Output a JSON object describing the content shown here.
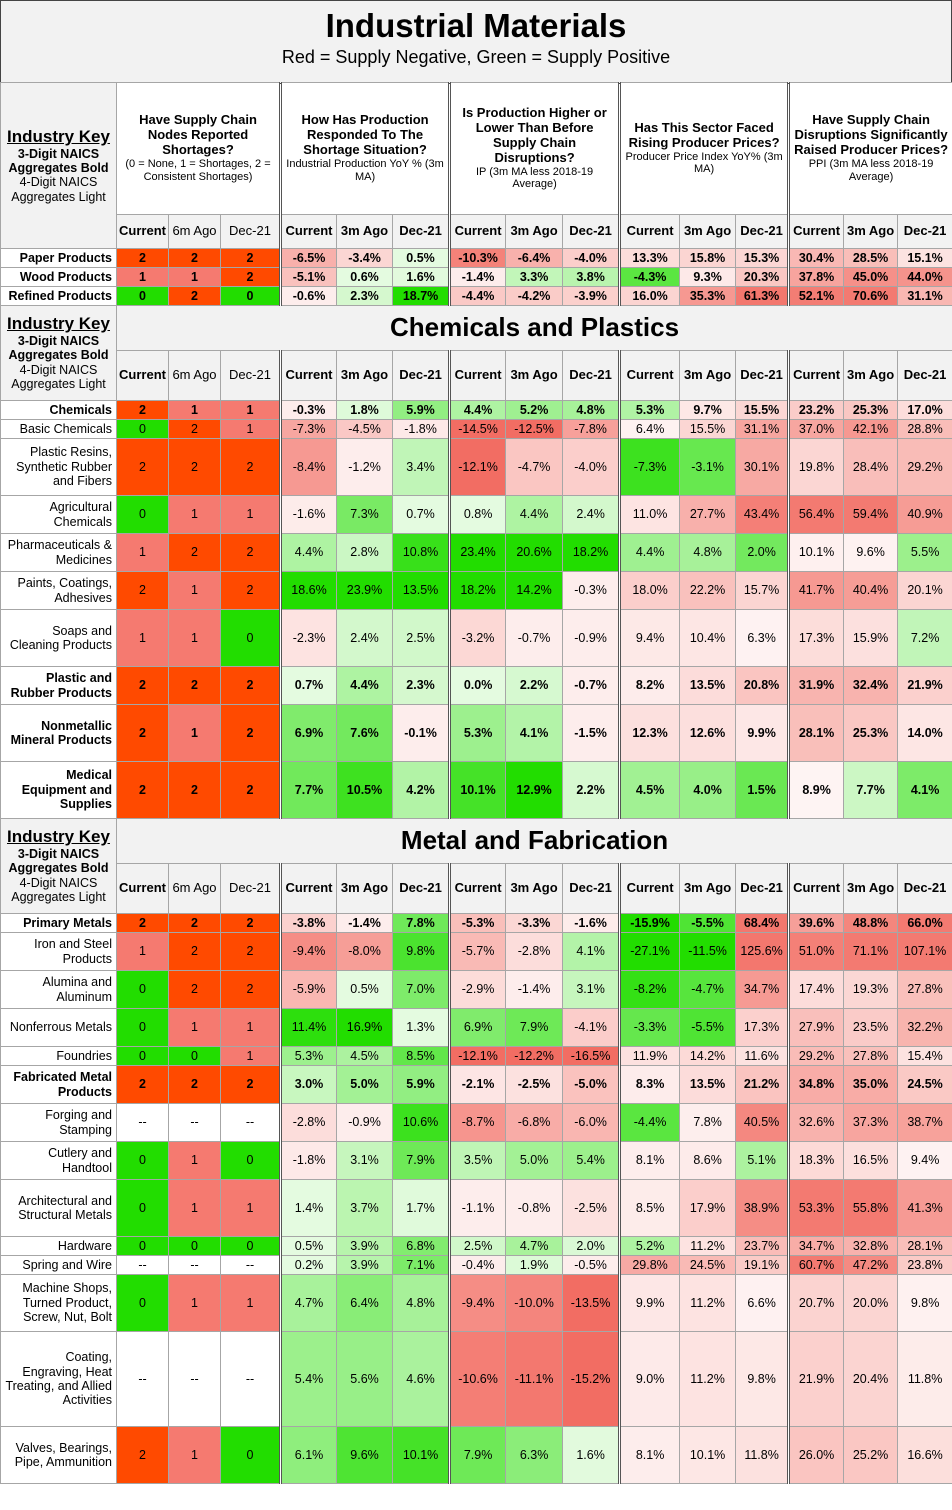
{
  "title": "Industrial Materials",
  "subtitle": "Red = Supply Negative, Green = Supply Positive",
  "key": {
    "line1": "Industry Key",
    "line2": "3-Digit NAICS",
    "line3": "Aggregates Bold",
    "line4": "4-Digit NAICS",
    "line5": "Aggregates Light"
  },
  "questions": [
    {
      "q": "Have Supply Chain Nodes Reported Shortages?",
      "sub": "(0 = None, 1 = Shortages, 2 = Consistent Shortages)"
    },
    {
      "q": "How Has Production Responded To The Shortage Situation?",
      "sub": "Industrial Production YoY % (3m MA)"
    },
    {
      "q": "Is Production Higher or Lower Than Before Supply Chain Disruptions?",
      "sub": "IP (3m MA less 2018-19 Average)"
    },
    {
      "q": "Has This Sector Faced Rising Producer Prices?",
      "sub": "Producer Price Index YoY% (3m MA)"
    },
    {
      "q": "Have Supply Chain Disruptions Significantly Raised Producer Prices?",
      "sub": "PPI (3m MA less 2018-19 Average)"
    }
  ],
  "col_labels_first": [
    "Current",
    "6m Ago",
    "Dec-21"
  ],
  "col_labels_other": [
    "Current",
    "3m Ago",
    "Dec-21"
  ],
  "colors": {
    "red_strong": "#ff4a00",
    "red_med": "#f57a70",
    "green_strong": "#22dd00"
  },
  "sections": [
    {
      "title": "",
      "rows": [
        {
          "name": "Paper Products",
          "bold": true,
          "h": 19,
          "vals": [
            "2",
            "2",
            "2",
            "-6.5%",
            "-3.4%",
            "0.5%",
            "-10.3%",
            "-6.4%",
            "-4.0%",
            "13.3%",
            "15.8%",
            "15.3%",
            "30.4%",
            "28.5%",
            "15.1%"
          ]
        },
        {
          "name": "Wood Products",
          "bold": true,
          "h": 19,
          "vals": [
            "1",
            "1",
            "2",
            "-5.1%",
            "0.6%",
            "1.6%",
            "-1.4%",
            "3.3%",
            "3.8%",
            "-4.3%",
            "9.3%",
            "20.3%",
            "37.8%",
            "45.0%",
            "44.0%"
          ]
        },
        {
          "name": "Refined Products",
          "bold": true,
          "h": 19,
          "vals": [
            "0",
            "2",
            "0",
            "-0.6%",
            "2.3%",
            "18.7%",
            "-4.4%",
            "-4.2%",
            "-3.9%",
            "16.0%",
            "35.3%",
            "61.3%",
            "52.1%",
            "70.6%",
            "31.1%"
          ]
        }
      ]
    },
    {
      "title": "Chemicals and Plastics",
      "rows": [
        {
          "name": "Chemicals",
          "bold": true,
          "h": 19,
          "vals": [
            "2",
            "1",
            "1",
            "-0.3%",
            "1.8%",
            "5.9%",
            "4.4%",
            "5.2%",
            "4.8%",
            "5.3%",
            "9.7%",
            "15.5%",
            "23.2%",
            "25.3%",
            "17.0%"
          ]
        },
        {
          "name": "Basic Chemicals",
          "bold": false,
          "h": 19,
          "vals": [
            "0",
            "2",
            "1",
            "-7.3%",
            "-4.5%",
            "-1.8%",
            "-14.5%",
            "-12.5%",
            "-7.8%",
            "6.4%",
            "15.5%",
            "31.1%",
            "37.0%",
            "42.1%",
            "28.8%"
          ]
        },
        {
          "name": "Plastic Resins, Synthetic Rubber and Fibers",
          "bold": false,
          "h": 57,
          "vals": [
            "2",
            "2",
            "2",
            "-8.4%",
            "-1.2%",
            "3.4%",
            "-12.1%",
            "-4.7%",
            "-4.0%",
            "-7.3%",
            "-3.1%",
            "30.1%",
            "19.8%",
            "28.4%",
            "29.2%"
          ]
        },
        {
          "name": "Agricultural Chemicals",
          "bold": false,
          "h": 38,
          "vals": [
            "0",
            "1",
            "1",
            "-1.6%",
            "7.3%",
            "0.7%",
            "0.8%",
            "4.4%",
            "2.4%",
            "11.0%",
            "27.7%",
            "43.4%",
            "56.4%",
            "59.4%",
            "40.9%"
          ]
        },
        {
          "name": "Pharmaceuticals & Medicines",
          "bold": false,
          "h": 38,
          "vals": [
            "1",
            "2",
            "2",
            "4.4%",
            "2.8%",
            "10.8%",
            "23.4%",
            "20.6%",
            "18.2%",
            "4.4%",
            "4.8%",
            "2.0%",
            "10.1%",
            "9.6%",
            "5.5%"
          ]
        },
        {
          "name": "Paints, Coatings, Adhesives",
          "bold": false,
          "h": 38,
          "vals": [
            "2",
            "1",
            "2",
            "18.6%",
            "23.9%",
            "13.5%",
            "18.2%",
            "14.2%",
            "-0.3%",
            "18.0%",
            "22.2%",
            "15.7%",
            "41.7%",
            "40.4%",
            "20.1%"
          ]
        },
        {
          "name": "Soaps and Cleaning Products",
          "bold": false,
          "h": 57,
          "vals": [
            "1",
            "1",
            "0",
            "-2.3%",
            "2.4%",
            "2.5%",
            "-3.2%",
            "-0.7%",
            "-0.9%",
            "9.4%",
            "10.4%",
            "6.3%",
            "17.3%",
            "15.9%",
            "7.2%"
          ]
        },
        {
          "name": "Plastic and Rubber Products",
          "bold": true,
          "h": 38,
          "vals": [
            "2",
            "2",
            "2",
            "0.7%",
            "4.4%",
            "2.3%",
            "0.0%",
            "2.2%",
            "-0.7%",
            "8.2%",
            "13.5%",
            "20.8%",
            "31.9%",
            "32.4%",
            "21.9%"
          ]
        },
        {
          "name": "Nonmetallic Mineral Products",
          "bold": true,
          "h": 57,
          "vals": [
            "2",
            "1",
            "2",
            "6.9%",
            "7.6%",
            "-0.1%",
            "5.3%",
            "4.1%",
            "-1.5%",
            "12.3%",
            "12.6%",
            "9.9%",
            "28.1%",
            "25.3%",
            "14.0%"
          ]
        },
        {
          "name": "Medical Equipment and Supplies",
          "bold": true,
          "h": 57,
          "vals": [
            "2",
            "2",
            "2",
            "7.7%",
            "10.5%",
            "4.2%",
            "10.1%",
            "12.9%",
            "2.2%",
            "4.5%",
            "4.0%",
            "1.5%",
            "8.9%",
            "7.7%",
            "4.1%"
          ]
        }
      ]
    },
    {
      "title": "Metal and Fabrication",
      "rows": [
        {
          "name": "Primary Metals",
          "bold": true,
          "h": 19,
          "vals": [
            "2",
            "2",
            "2",
            "-3.8%",
            "-1.4%",
            "7.8%",
            "-5.3%",
            "-3.3%",
            "-1.6%",
            "-15.9%",
            "-5.5%",
            "68.4%",
            "39.6%",
            "48.8%",
            "66.0%"
          ]
        },
        {
          "name": "Iron and Steel Products",
          "bold": false,
          "h": 38,
          "vals": [
            "1",
            "2",
            "2",
            "-9.4%",
            "-8.0%",
            "9.8%",
            "-5.7%",
            "-2.8%",
            "4.1%",
            "-27.1%",
            "-11.5%",
            "125.6%",
            "51.0%",
            "71.1%",
            "107.1%"
          ]
        },
        {
          "name": "Alumina and Aluminum",
          "bold": false,
          "h": 38,
          "vals": [
            "0",
            "2",
            "2",
            "-5.9%",
            "0.5%",
            "7.0%",
            "-2.9%",
            "-1.4%",
            "3.1%",
            "-8.2%",
            "-4.7%",
            "34.7%",
            "17.4%",
            "19.3%",
            "27.8%"
          ]
        },
        {
          "name": "Nonferrous Metals",
          "bold": false,
          "h": 38,
          "vals": [
            "0",
            "1",
            "1",
            "11.4%",
            "16.9%",
            "1.3%",
            "6.9%",
            "7.9%",
            "-4.1%",
            "-3.3%",
            "-5.5%",
            "17.3%",
            "27.9%",
            "23.5%",
            "32.2%"
          ]
        },
        {
          "name": "Foundries",
          "bold": false,
          "h": 19,
          "vals": [
            "0",
            "0",
            "1",
            "5.3%",
            "4.5%",
            "8.5%",
            "-12.1%",
            "-12.2%",
            "-16.5%",
            "11.9%",
            "14.2%",
            "11.6%",
            "29.2%",
            "27.8%",
            "15.4%"
          ]
        },
        {
          "name": "Fabricated Metal Products",
          "bold": true,
          "h": 38,
          "vals": [
            "2",
            "2",
            "2",
            "3.0%",
            "5.0%",
            "5.9%",
            "-2.1%",
            "-2.5%",
            "-5.0%",
            "8.3%",
            "13.5%",
            "21.2%",
            "34.8%",
            "35.0%",
            "24.5%"
          ]
        },
        {
          "name": "Forging and Stamping",
          "bold": false,
          "h": 38,
          "vals": [
            "--",
            "--",
            "--",
            "-2.8%",
            "-0.9%",
            "10.6%",
            "-8.7%",
            "-6.8%",
            "-6.0%",
            "-4.4%",
            "7.8%",
            "40.5%",
            "32.6%",
            "37.3%",
            "38.7%"
          ]
        },
        {
          "name": "Cutlery and Handtool",
          "bold": false,
          "h": 38,
          "vals": [
            "0",
            "1",
            "0",
            "-1.8%",
            "3.1%",
            "7.9%",
            "3.5%",
            "5.0%",
            "5.4%",
            "8.1%",
            "8.6%",
            "5.1%",
            "18.3%",
            "16.5%",
            "9.4%"
          ]
        },
        {
          "name": "Architectural and Structural Metals",
          "bold": false,
          "h": 57,
          "vals": [
            "0",
            "1",
            "1",
            "1.4%",
            "3.7%",
            "1.7%",
            "-1.1%",
            "-0.8%",
            "-2.5%",
            "8.5%",
            "17.9%",
            "38.9%",
            "53.3%",
            "55.8%",
            "41.3%"
          ]
        },
        {
          "name": "Hardware",
          "bold": false,
          "h": 19,
          "vals": [
            "0",
            "0",
            "0",
            "0.5%",
            "3.9%",
            "6.8%",
            "2.5%",
            "4.7%",
            "2.0%",
            "5.2%",
            "11.2%",
            "23.7%",
            "34.7%",
            "32.8%",
            "28.1%"
          ]
        },
        {
          "name": "Spring and Wire",
          "bold": false,
          "h": 19,
          "vals": [
            "--",
            "--",
            "--",
            "0.2%",
            "3.9%",
            "7.1%",
            "-0.4%",
            "1.9%",
            "-0.5%",
            "29.8%",
            "24.5%",
            "19.1%",
            "60.7%",
            "47.2%",
            "23.8%"
          ]
        },
        {
          "name": "Machine Shops, Turned Product, Screw, Nut, Bolt",
          "bold": false,
          "h": 57,
          "vals": [
            "0",
            "1",
            "1",
            "4.7%",
            "6.4%",
            "4.8%",
            "-9.4%",
            "-10.0%",
            "-13.5%",
            "9.9%",
            "11.2%",
            "6.6%",
            "20.7%",
            "20.0%",
            "9.8%"
          ]
        },
        {
          "name": "Coating, Engraving, Heat Treating, and Allied Activities",
          "bold": false,
          "h": 95,
          "vals": [
            "--",
            "--",
            "--",
            "5.4%",
            "5.6%",
            "4.6%",
            "-10.6%",
            "-11.1%",
            "-15.2%",
            "9.0%",
            "11.2%",
            "9.8%",
            "21.9%",
            "20.4%",
            "11.8%"
          ]
        },
        {
          "name": "Valves, Bearings, Pipe, Ammunition",
          "bold": false,
          "h": 57,
          "vals": [
            "2",
            "1",
            "0",
            "6.1%",
            "9.6%",
            "10.1%",
            "7.9%",
            "6.3%",
            "1.6%",
            "8.1%",
            "10.1%",
            "11.8%",
            "26.0%",
            "25.2%",
            "16.6%"
          ]
        }
      ]
    }
  ]
}
